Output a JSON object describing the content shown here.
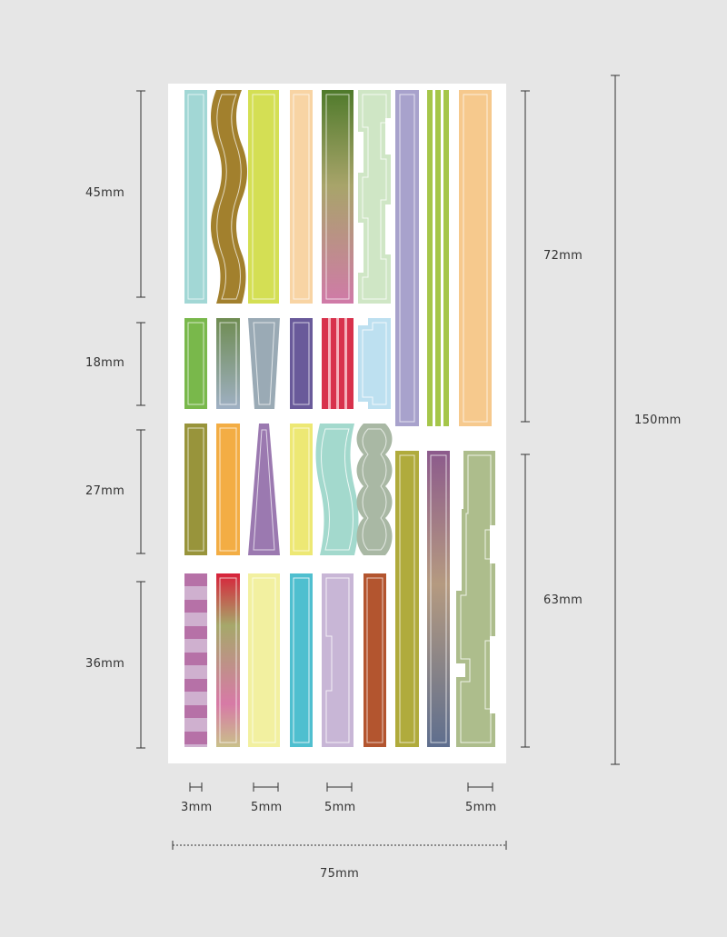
{
  "dimensions": {
    "heights_left": [
      "45mm",
      "18mm",
      "27mm",
      "36mm"
    ],
    "heights_right": [
      "72mm",
      "63mm"
    ],
    "total_height": "150mm",
    "widths": [
      "3mm",
      "5mm",
      "5mm",
      "5mm"
    ],
    "total_width": "75mm"
  },
  "colors": {
    "sheet": "#ffffff",
    "background": "#e6e6e6",
    "dimension_line": "#333333"
  }
}
